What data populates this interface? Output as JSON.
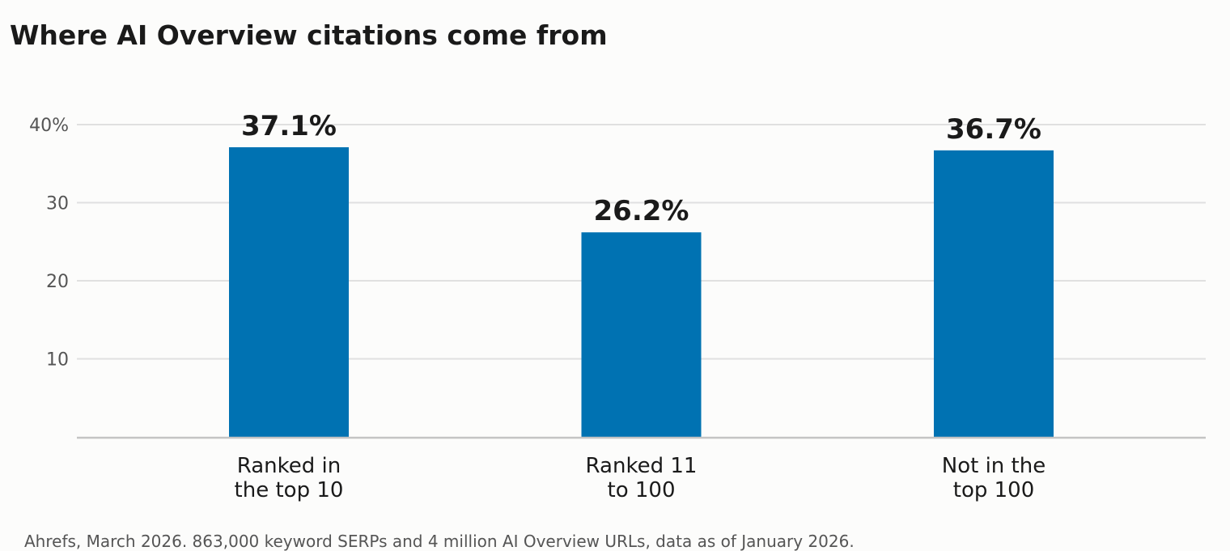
{
  "chart_data": {
    "type": "bar",
    "title": "Where AI Overview citations come from",
    "source": "Ahrefs, March 2026. 863,000 keyword SERPs and 4 million AI Overview URLs, data as of January 2026.",
    "categories": [
      [
        "Ranked in",
        "the top 10"
      ],
      [
        "Ranked 11",
        "to 100"
      ],
      [
        "Not in the",
        "top 100"
      ]
    ],
    "values": [
      37.1,
      26.2,
      36.7
    ],
    "data_labels": [
      "37.1%",
      "26.2%",
      "36.7%"
    ],
    "ylim": [
      0,
      40
    ],
    "yticks": [
      10,
      20,
      30,
      40
    ],
    "ytick_labels": [
      "10",
      "20",
      "30",
      "40%"
    ],
    "xlabel": "",
    "ylabel": "",
    "grid": true,
    "colors": {
      "bar": "#0072b2",
      "grid": "#e0e0e0",
      "axis": "#c4c4c4"
    }
  }
}
